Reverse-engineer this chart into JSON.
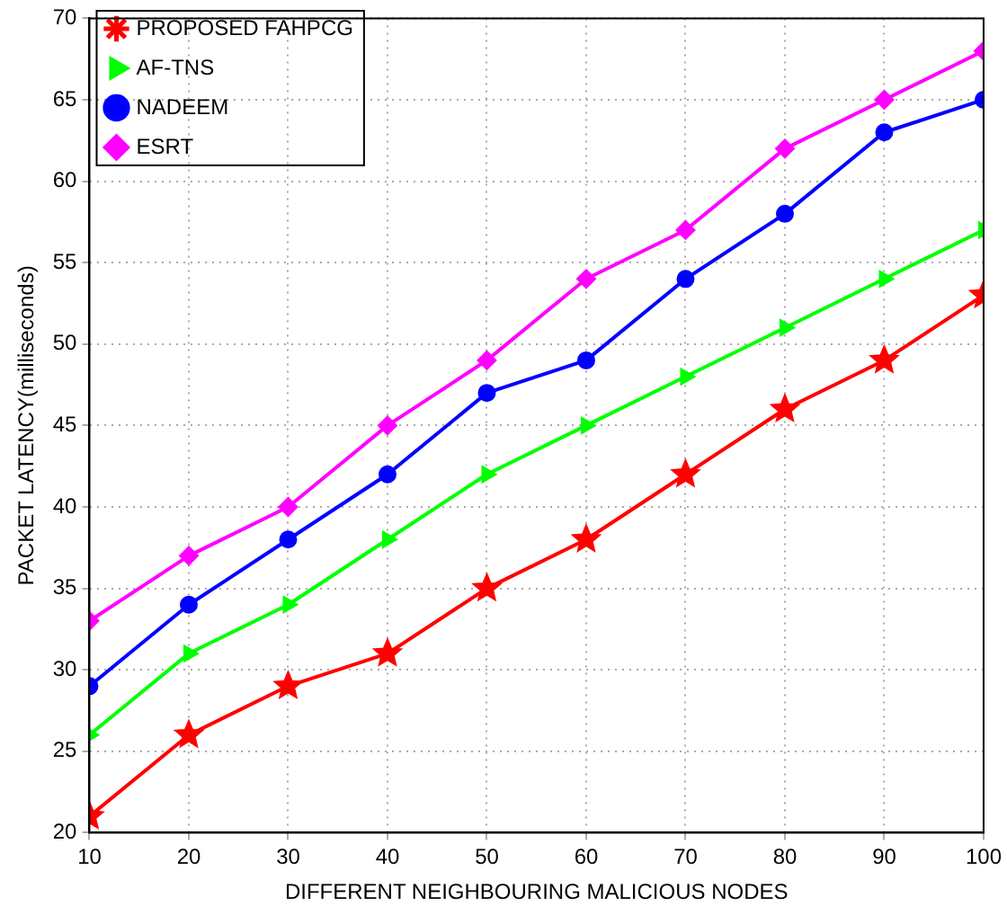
{
  "chart_data": {
    "type": "line",
    "xlabel": "DIFFERENT NEIGHBOURING MALICIOUS NODES",
    "ylabel": "PACKET LATENCY(milliseconds)",
    "x": [
      10,
      20,
      30,
      40,
      50,
      60,
      70,
      80,
      90,
      100
    ],
    "xlim": [
      10,
      100
    ],
    "xticks": [
      10,
      20,
      30,
      40,
      50,
      60,
      70,
      80,
      90,
      100
    ],
    "ylim": [
      20,
      70
    ],
    "yticks": [
      20,
      25,
      30,
      35,
      40,
      45,
      50,
      55,
      60,
      65,
      70
    ],
    "grid": true,
    "legend": "top left",
    "line_style": "solid",
    "series": [
      {
        "name": "PROPOSED FAHPCG",
        "color": "#ff0000",
        "marker": "star",
        "values": [
          21,
          26,
          29,
          31,
          35,
          38,
          42,
          46,
          49,
          53
        ]
      },
      {
        "name": "AF-TNS",
        "color": "#00ff00",
        "marker": "triangle",
        "values": [
          26,
          31,
          34,
          38,
          42,
          45,
          48,
          51,
          54,
          57
        ]
      },
      {
        "name": "NADEEM",
        "color": "#0000ff",
        "marker": "circle",
        "values": [
          29,
          34,
          38,
          42,
          47,
          49,
          54,
          58,
          63,
          65
        ]
      },
      {
        "name": "ESRT",
        "color": "#ff00ff",
        "marker": "diamond",
        "values": [
          33,
          37,
          40,
          45,
          49,
          54,
          57,
          62,
          65,
          68
        ]
      }
    ]
  }
}
